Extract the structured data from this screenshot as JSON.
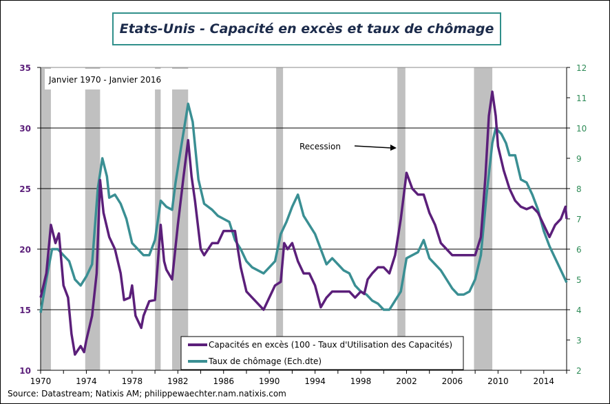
{
  "title": "Etats-Unis - Capacité en excès et taux de chômage",
  "source": "Source: Datastream; Natixis AM; philippewaechter.nam.natixis.com",
  "chart_data": {
    "type": "line",
    "title": "Etats-Unis - Capacité en excès et taux de chômage",
    "subtitle": "Janvier 1970 - Janvier 2016",
    "annotation": "Recession",
    "xlim": [
      1970,
      2016
    ],
    "x_ticks": [
      "1970",
      "1974",
      "1978",
      "1982",
      "1986",
      "1990",
      "1994",
      "1998",
      "2002",
      "2006",
      "2010",
      "2014"
    ],
    "ylim_left": [
      10,
      35
    ],
    "y_ticks_left": [
      "10",
      "15",
      "20",
      "25",
      "30",
      "35"
    ],
    "ylim_right": [
      2,
      12
    ],
    "y_ticks_right": [
      "2",
      "3",
      "4",
      "5",
      "6",
      "7",
      "8",
      "9",
      "10",
      "11",
      "12"
    ],
    "grid": true,
    "legend_position": "bottom-center",
    "colors": {
      "left": "#5b1f7a",
      "right": "#3a8f93",
      "recession": "#c0c0c0",
      "right_axis_text": "#2e8b57"
    },
    "recessions": [
      [
        1970.0,
        1970.9
      ],
      [
        1973.9,
        1975.2
      ],
      [
        1980.0,
        1980.5
      ],
      [
        1981.5,
        1982.9
      ],
      [
        1990.6,
        1991.2
      ],
      [
        2001.2,
        2001.9
      ],
      [
        2007.9,
        2009.5
      ]
    ],
    "series": [
      {
        "name": "Capacités en excès (100 - Taux d'Utilisation des Capacités)",
        "axis": "left",
        "x": [
          1970,
          1970.5,
          1970.9,
          1971.3,
          1971.6,
          1972,
          1972.4,
          1972.7,
          1973,
          1973.5,
          1973.8,
          1974,
          1974.5,
          1974.9,
          1975.2,
          1975.5,
          1976,
          1976.5,
          1977,
          1977.3,
          1977.8,
          1978,
          1978.3,
          1978.8,
          1979,
          1979.5,
          1980,
          1980.3,
          1980.5,
          1980.8,
          1981,
          1981.5,
          1982,
          1982.5,
          1982.9,
          1983.2,
          1983.5,
          1984,
          1984.3,
          1985,
          1985.5,
          1986,
          1986.5,
          1987,
          1987.5,
          1988,
          1988.5,
          1989,
          1989.5,
          1990,
          1990.5,
          1991,
          1991.3,
          1991.6,
          1992,
          1992.5,
          1993,
          1993.5,
          1994,
          1994.5,
          1995,
          1995.5,
          1996,
          1996.5,
          1997,
          1997.5,
          1998,
          1998.3,
          1998.6,
          1999,
          1999.5,
          2000,
          2000.5,
          2001,
          2001.5,
          2002,
          2002.5,
          2003,
          2003.5,
          2004,
          2004.5,
          2005,
          2005.5,
          2006,
          2006.5,
          2007,
          2007.5,
          2008,
          2008.5,
          2008.9,
          2009.2,
          2009.5,
          2009.8,
          2010,
          2010.5,
          2011,
          2011.5,
          2012,
          2012.5,
          2013,
          2013.5,
          2014,
          2014.5,
          2015,
          2015.5,
          2015.9,
          2016
        ],
        "values": [
          16,
          18,
          22,
          20.5,
          21.3,
          17,
          16,
          13,
          11.3,
          12,
          11.5,
          12.5,
          14.5,
          18,
          25.7,
          23,
          21,
          20,
          18,
          15.8,
          16,
          17,
          14.5,
          13.5,
          14.5,
          15.7,
          15.8,
          19.5,
          22,
          19,
          18.3,
          17.5,
          22,
          26,
          29,
          26,
          24,
          20,
          19.5,
          20.5,
          20.5,
          21.5,
          21.5,
          21.5,
          18.5,
          16.5,
          16,
          15.5,
          15,
          16,
          17,
          17.3,
          20.5,
          20,
          20.5,
          19,
          18,
          18,
          17,
          15.2,
          16,
          16.5,
          16.5,
          16.5,
          16.5,
          16,
          16.5,
          16.3,
          17.5,
          18,
          18.5,
          18.5,
          18,
          19.5,
          22.5,
          26.3,
          25,
          24.5,
          24.5,
          23,
          22,
          20.5,
          20,
          19.5,
          19.5,
          19.5,
          19.5,
          19.5,
          21,
          26,
          31,
          33,
          31,
          28.5,
          26.5,
          25,
          24,
          23.5,
          23.3,
          23.5,
          23,
          22,
          21,
          22,
          22.5,
          23.5,
          22.5
        ]
      },
      {
        "name": "Taux de chômage (Ech.dte)",
        "axis": "right",
        "x": [
          1970,
          1970.5,
          1971,
          1971.5,
          1972,
          1972.5,
          1973,
          1973.5,
          1974,
          1974.5,
          1975,
          1975.4,
          1975.8,
          1976,
          1976.5,
          1977,
          1977.5,
          1978,
          1978.5,
          1979,
          1979.5,
          1980,
          1980.5,
          1981,
          1981.5,
          1981.8,
          1982.3,
          1982.9,
          1983.3,
          1983.8,
          1984.3,
          1985,
          1985.5,
          1986,
          1986.5,
          1987,
          1987.5,
          1988,
          1988.5,
          1989,
          1989.5,
          1990,
          1990.5,
          1991,
          1991.5,
          1992,
          1992.5,
          1993,
          1993.5,
          1994,
          1994.5,
          1995,
          1995.5,
          1996,
          1996.5,
          1997,
          1997.5,
          1998,
          1998.5,
          1999,
          1999.5,
          2000,
          2000.5,
          2001,
          2001.5,
          2002,
          2002.5,
          2003,
          2003.5,
          2004,
          2004.5,
          2005,
          2005.5,
          2006,
          2006.5,
          2007,
          2007.5,
          2008,
          2008.5,
          2009,
          2009.5,
          2009.8,
          2010.3,
          2010.7,
          2011,
          2011.5,
          2012,
          2012.5,
          2013,
          2013.5,
          2014,
          2014.5,
          2015,
          2015.5,
          2016
        ],
        "values": [
          3.9,
          5,
          6,
          6,
          5.8,
          5.6,
          5,
          4.8,
          5.1,
          5.5,
          8,
          9,
          8.4,
          7.7,
          7.8,
          7.5,
          7,
          6.2,
          6,
          5.8,
          5.8,
          6.3,
          7.6,
          7.4,
          7.3,
          8.2,
          9.4,
          10.8,
          10.2,
          8.3,
          7.5,
          7.3,
          7.1,
          7,
          6.9,
          6.3,
          6,
          5.6,
          5.4,
          5.3,
          5.2,
          5.4,
          5.6,
          6.5,
          6.9,
          7.4,
          7.8,
          7.1,
          6.8,
          6.5,
          6,
          5.5,
          5.7,
          5.5,
          5.3,
          5.2,
          4.8,
          4.6,
          4.5,
          4.3,
          4.2,
          4,
          4,
          4.3,
          4.6,
          5.7,
          5.8,
          5.9,
          6.3,
          5.7,
          5.5,
          5.3,
          5,
          4.7,
          4.5,
          4.5,
          4.6,
          5,
          5.8,
          7.8,
          9.5,
          10,
          9.8,
          9.5,
          9.1,
          9.1,
          8.3,
          8.2,
          7.8,
          7.3,
          6.6,
          6.1,
          5.7,
          5.3,
          4.9
        ]
      }
    ]
  }
}
